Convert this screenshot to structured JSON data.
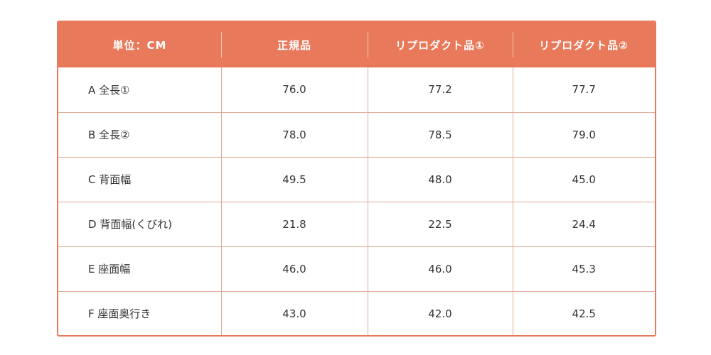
{
  "table": {
    "headers": [
      "単位：CM",
      "正規品",
      "リプロダクト品①",
      "リプロダクト品②"
    ],
    "rows": [
      {
        "label": "A 全長①",
        "values": [
          "76.0",
          "77.2",
          "77.7"
        ]
      },
      {
        "label": "B 全長②",
        "values": [
          "78.0",
          "78.5",
          "79.0"
        ]
      },
      {
        "label": "C 背面幅",
        "values": [
          "49.5",
          "48.0",
          "45.0"
        ]
      },
      {
        "label": "D 背面幅(くびれ)",
        "values": [
          "21.8",
          "22.5",
          "24.4"
        ]
      },
      {
        "label": "E 座面幅",
        "values": [
          "46.0",
          "46.0",
          "45.3"
        ]
      },
      {
        "label": "F 座面奥行き",
        "values": [
          "43.0",
          "42.0",
          "42.5"
        ]
      }
    ]
  },
  "colors": {
    "header_bg": "#e8795a",
    "border": "#e3ab98",
    "header_text": "#ffffff",
    "body_text": "#333333"
  }
}
